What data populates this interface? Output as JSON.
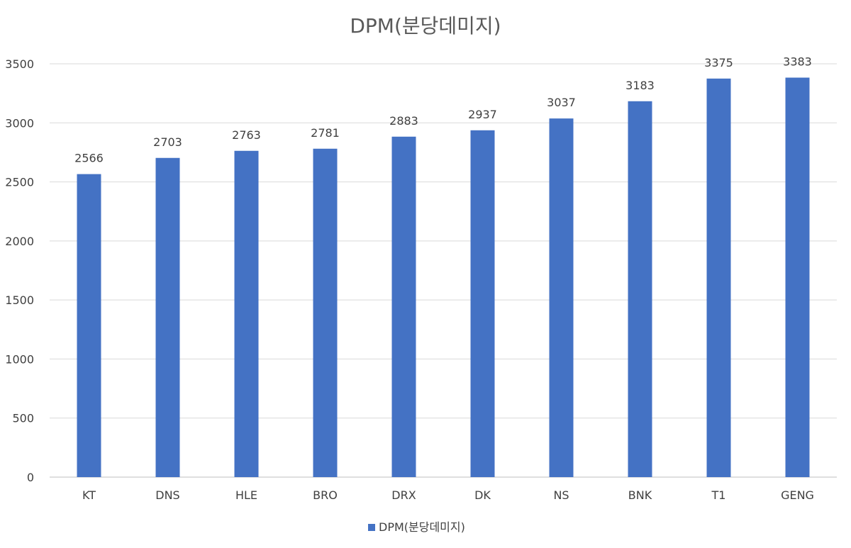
{
  "chart_data": {
    "type": "bar",
    "title": "DPM(분당데미지)",
    "xlabel": "",
    "ylabel": "",
    "categories": [
      "KT",
      "DNS",
      "HLE",
      "BRO",
      "DRX",
      "DK",
      "NS",
      "BNK",
      "T1",
      "GENG"
    ],
    "series": [
      {
        "name": "DPM(분당데미지)",
        "values": [
          2566,
          2703,
          2763,
          2781,
          2883,
          2937,
          3037,
          3183,
          3375,
          3383
        ],
        "color": "#4472C4"
      }
    ],
    "ylim": [
      0,
      3500
    ],
    "yticks": [
      0,
      500,
      1000,
      1500,
      2000,
      2500,
      3000,
      3500
    ],
    "grid": true,
    "legend": "bottom",
    "data_labels": true
  }
}
